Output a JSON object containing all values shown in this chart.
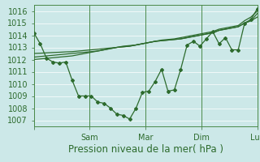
{
  "xlabel": "Pression niveau de la mer( hPa )",
  "background_color": "#cce8e8",
  "grid_color": "#b8d8d8",
  "line_color": "#2d6b2d",
  "ylim": [
    1006.5,
    1016.5
  ],
  "yticks": [
    1007,
    1008,
    1009,
    1010,
    1011,
    1012,
    1013,
    1014,
    1015,
    1016
  ],
  "series_main": [
    1014.2,
    1013.3,
    1012.1,
    1011.8,
    1011.7,
    1011.8,
    1010.3,
    1009.0,
    1009.0,
    1009.0,
    1008.5,
    1008.4,
    1008.0,
    1007.5,
    1007.4,
    1007.1,
    1008.0,
    1009.3,
    1009.4,
    1010.2,
    1011.2,
    1009.4,
    1009.5,
    1011.2,
    1013.2,
    1013.5,
    1013.1,
    1013.7,
    1014.3,
    1013.3,
    1013.8,
    1012.8,
    1012.8,
    1015.0,
    1015.3,
    1016.2
  ],
  "series_trend1": [
    1012.0,
    1012.05,
    1012.1,
    1012.15,
    1012.2,
    1012.25,
    1012.3,
    1012.4,
    1012.5,
    1012.6,
    1012.7,
    1012.8,
    1012.9,
    1013.0,
    1013.1,
    1013.15,
    1013.2,
    1013.3,
    1013.4,
    1013.5,
    1013.6,
    1013.65,
    1013.7,
    1013.8,
    1013.9,
    1014.0,
    1014.1,
    1014.2,
    1014.3,
    1014.5,
    1014.6,
    1014.7,
    1014.8,
    1015.2,
    1015.5,
    1016.0
  ],
  "series_trend2": [
    1012.2,
    1012.25,
    1012.3,
    1012.35,
    1012.4,
    1012.45,
    1012.5,
    1012.55,
    1012.6,
    1012.65,
    1012.7,
    1012.8,
    1012.9,
    1013.0,
    1013.05,
    1013.1,
    1013.2,
    1013.3,
    1013.4,
    1013.5,
    1013.55,
    1013.6,
    1013.65,
    1013.7,
    1013.8,
    1013.9,
    1014.0,
    1014.1,
    1014.2,
    1014.4,
    1014.5,
    1014.6,
    1014.7,
    1015.0,
    1015.2,
    1015.8
  ],
  "series_trend3": [
    1012.5,
    1012.52,
    1012.55,
    1012.58,
    1012.6,
    1012.63,
    1012.65,
    1012.7,
    1012.75,
    1012.8,
    1012.85,
    1012.9,
    1012.95,
    1013.0,
    1013.05,
    1013.1,
    1013.2,
    1013.3,
    1013.4,
    1013.5,
    1013.55,
    1013.6,
    1013.65,
    1013.7,
    1013.8,
    1013.9,
    1014.0,
    1014.1,
    1014.2,
    1014.4,
    1014.5,
    1014.6,
    1014.7,
    1015.0,
    1015.2,
    1015.5
  ],
  "n_points": 36,
  "x_end": 7.0,
  "vline_positions": [
    0.0,
    1.75,
    3.5,
    5.25,
    7.0
  ],
  "xtick_positions": [
    0.0,
    1.75,
    3.5,
    5.25,
    7.0
  ],
  "xtick_labels": [
    "",
    "Sam",
    "Mar",
    "Dim",
    "Lun"
  ],
  "font_color": "#2d6b2d",
  "tick_font_size": 7,
  "xlabel_font_size": 8.5
}
